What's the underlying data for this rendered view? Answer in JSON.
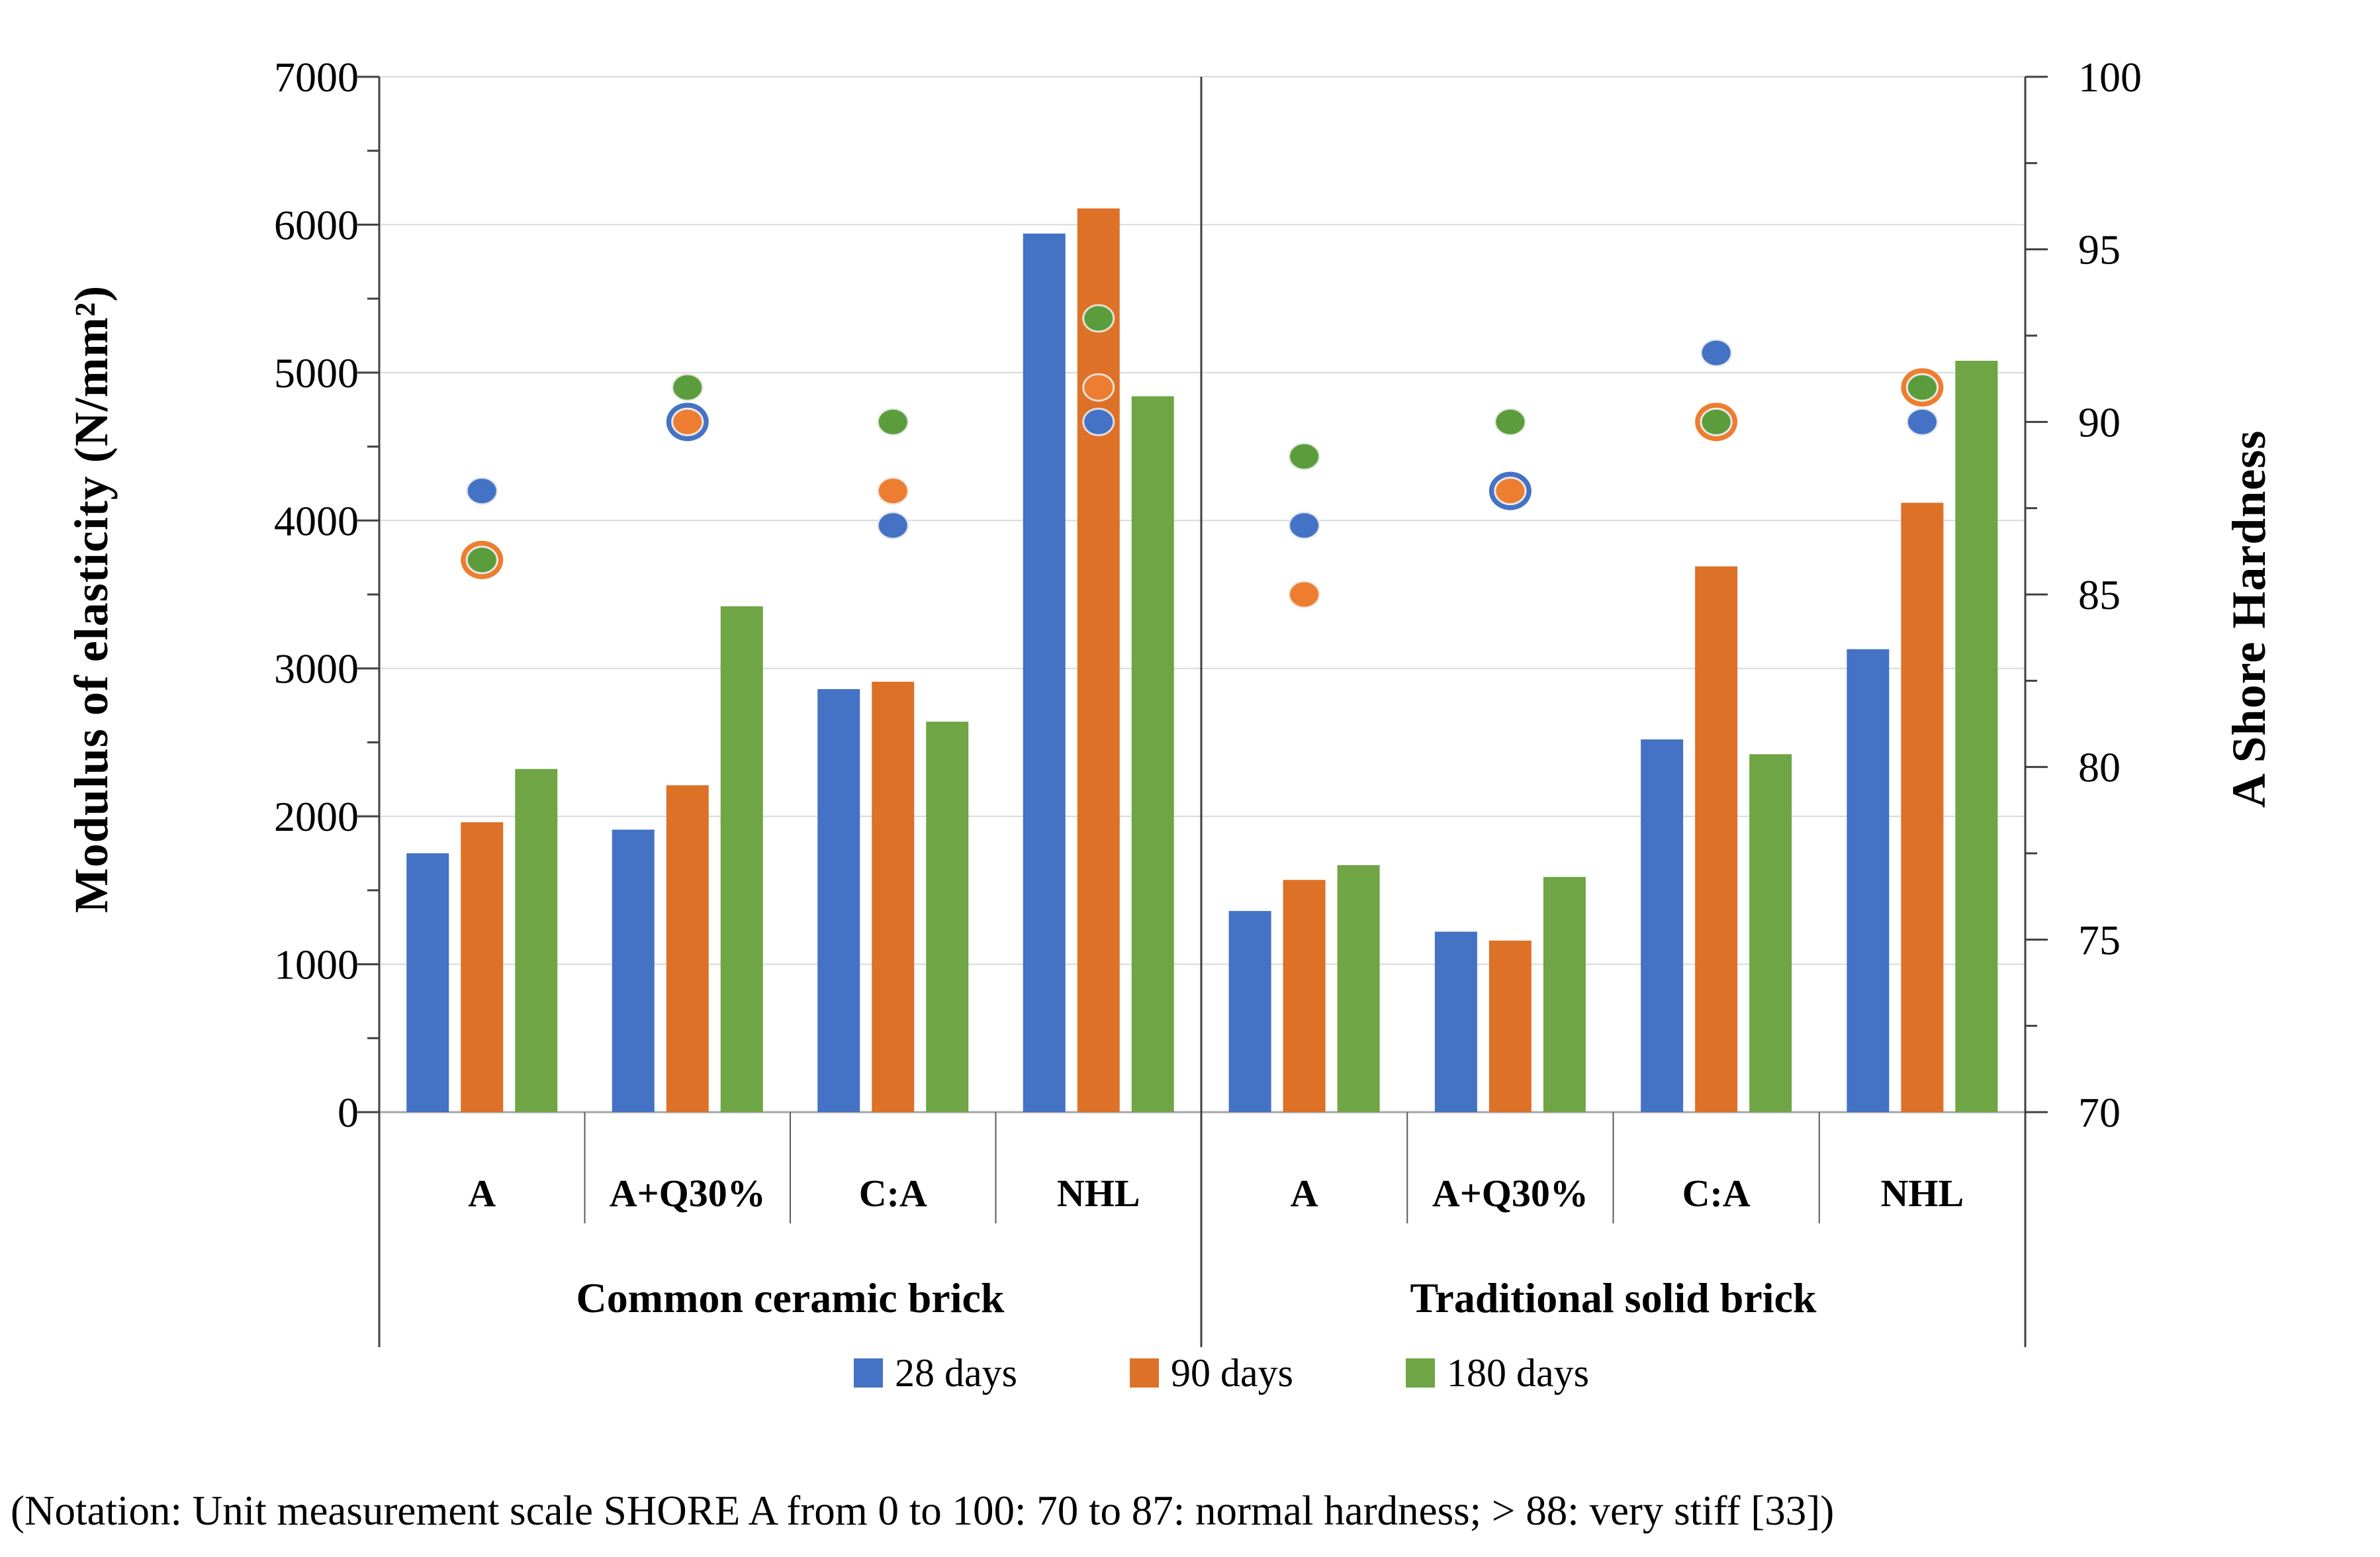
{
  "notation": {
    "text": "(Notation: Unit measurement scale SHORE A from 0 to 100: 70 to 87: normal hardness; > 88: very stiff [33])"
  },
  "legend": {
    "items": [
      {
        "label": "28 days",
        "color": "#4472C4"
      },
      {
        "label": "90 days",
        "color": "#DD7128"
      },
      {
        "label": "180 days",
        "color": "#6FA544"
      }
    ]
  },
  "chart_data": {
    "type": "bar+scatter",
    "title": "",
    "left_axis": {
      "label": "Modulus of elasticity (N/mm²)",
      "min": 0,
      "max": 7000,
      "major_step": 1000,
      "minor_step": 500,
      "tick_labels": [
        "0",
        "1000",
        "2000",
        "3000",
        "4000",
        "5000",
        "6000",
        "7000"
      ]
    },
    "right_axis": {
      "label": "A Shore Hardness",
      "min": 70,
      "max": 100,
      "major_step": 5,
      "minor_step": 2.5,
      "tick_labels": [
        "70",
        "75",
        "80",
        "85",
        "90",
        "95",
        "100"
      ]
    },
    "grid": true,
    "legend_position": "bottom",
    "series": [
      {
        "name": "28 days",
        "bar_color": "#4472C4",
        "dot_color": "#4472C4"
      },
      {
        "name": "90 days",
        "bar_color": "#DD7128",
        "dot_color": "#ED7D31"
      },
      {
        "name": "180 days",
        "bar_color": "#6FA544",
        "dot_color": "#5B9C3C"
      }
    ],
    "bar_unit": "N/mm²",
    "dot_unit": "Shore A",
    "groups": [
      {
        "label": "Common ceramic brick",
        "categories": [
          {
            "label": "A",
            "modulus": [
              1750,
              1960,
              2320
            ],
            "hardness": [
              88,
              86,
              86
            ]
          },
          {
            "label": "A+Q30%",
            "modulus": [
              1910,
              2210,
              3420
            ],
            "hardness": [
              90,
              90,
              91
            ]
          },
          {
            "label": "C:A",
            "modulus": [
              2860,
              2910,
              2640
            ],
            "hardness": [
              87,
              88,
              90
            ]
          },
          {
            "label": "NHL",
            "modulus": [
              5940,
              6110,
              4840
            ],
            "hardness": [
              90,
              91,
              93
            ]
          }
        ]
      },
      {
        "label": "Traditional solid brick",
        "categories": [
          {
            "label": "A",
            "modulus": [
              1360,
              1570,
              1670
            ],
            "hardness": [
              87,
              85,
              89
            ]
          },
          {
            "label": "A+Q30%",
            "modulus": [
              1220,
              1160,
              1590
            ],
            "hardness": [
              88,
              88,
              90
            ]
          },
          {
            "label": "C:A",
            "modulus": [
              2520,
              3690,
              2420
            ],
            "hardness": [
              92,
              90,
              90
            ]
          },
          {
            "label": "NHL",
            "modulus": [
              3130,
              4120,
              5080
            ],
            "hardness": [
              90,
              91,
              91
            ]
          }
        ]
      }
    ]
  }
}
